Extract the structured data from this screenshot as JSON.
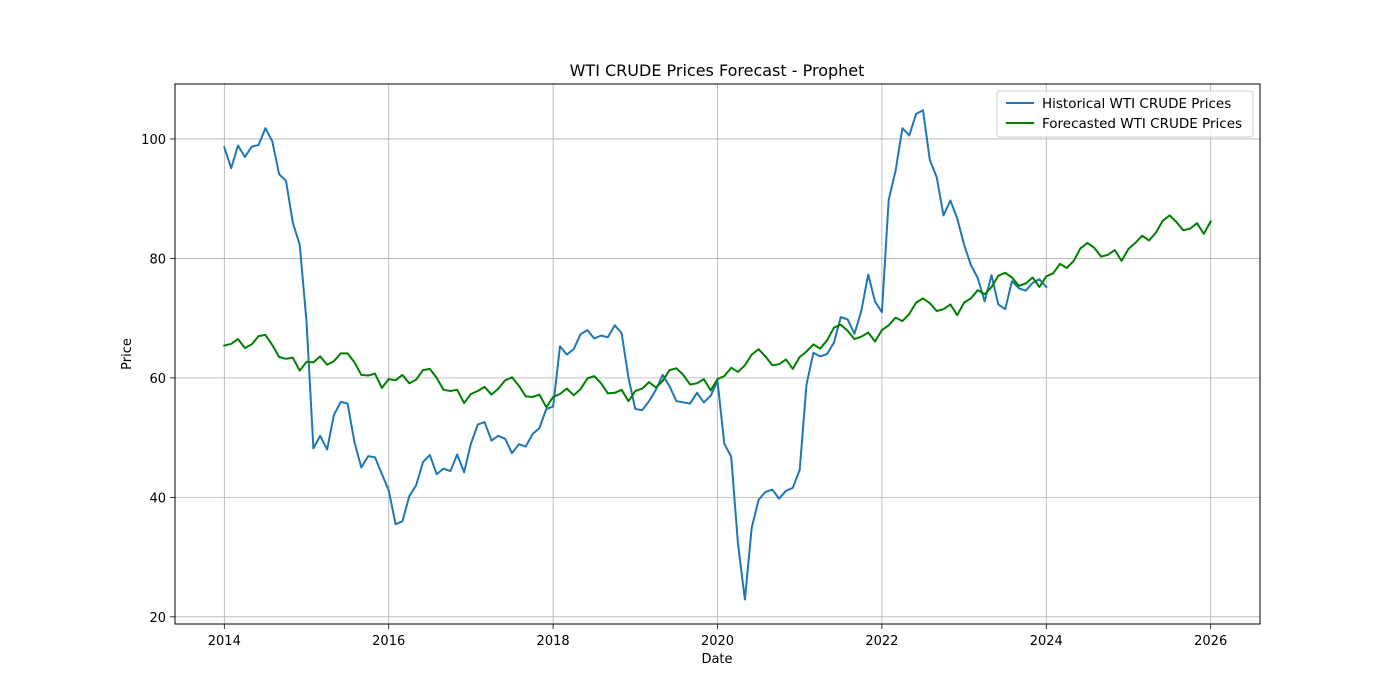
{
  "chart_data": {
    "type": "line",
    "title": "WTI CRUDE Prices Forecast - Prophet",
    "xlabel": "Date",
    "ylabel": "Price",
    "xlim": [
      2013.4,
      2026.6
    ],
    "ylim": [
      18.8,
      109.2
    ],
    "x_ticks": [
      2014,
      2016,
      2018,
      2020,
      2022,
      2024,
      2026
    ],
    "y_ticks": [
      20,
      40,
      60,
      80,
      100
    ],
    "grid": true,
    "legend_position": "top-right",
    "series": [
      {
        "name": "Historical WTI CRUDE Prices",
        "color": "#1f77b4",
        "start": "2014-01",
        "values": [
          98.6,
          95.1,
          98.9,
          97.0,
          98.7,
          99.0,
          101.8,
          99.6,
          94.1,
          93.0,
          86.0,
          82.3,
          69.5,
          48.2,
          50.3,
          48.0,
          53.8,
          56.0,
          55.7,
          49.2,
          45.0,
          46.9,
          46.7,
          43.9,
          41.2,
          35.5,
          36.0,
          40.2,
          42.0,
          45.9,
          47.1,
          43.9,
          44.8,
          44.4,
          47.2,
          44.2,
          49.0,
          52.2,
          52.6,
          49.5,
          50.3,
          49.8,
          47.4,
          48.9,
          48.5,
          50.6,
          51.6,
          54.8,
          55.2,
          65.3,
          63.9,
          64.8,
          67.3,
          68.0,
          66.6,
          67.1,
          66.8,
          68.8,
          67.5,
          60.0,
          54.8,
          54.6,
          56.1,
          58.0,
          60.5,
          58.6,
          56.1,
          55.9,
          55.7,
          57.5,
          55.9,
          57.0,
          59.5,
          49.0,
          46.8,
          32.2,
          22.9,
          34.9,
          39.6,
          40.9,
          41.3,
          39.8,
          41.1,
          41.6,
          44.6,
          58.9,
          64.2,
          63.6,
          64.0,
          65.9,
          70.2,
          69.8,
          67.4,
          71.2,
          77.3,
          72.8,
          71.0,
          89.8,
          94.7,
          101.8,
          100.6,
          104.2,
          104.8,
          96.5,
          93.6,
          87.2,
          89.7,
          86.7,
          82.3,
          78.9,
          76.7,
          72.8,
          77.2,
          72.3,
          71.5,
          76.2,
          75.0,
          74.6,
          75.9,
          76.5,
          75.2
        ]
      },
      {
        "name": "Forecasted WTI CRUDE Prices",
        "color": "#008000",
        "start": "2014-01",
        "values": [
          65.4,
          65.7,
          66.5,
          65.0,
          65.6,
          67.0,
          67.2,
          65.5,
          63.5,
          63.2,
          63.4,
          61.2,
          62.7,
          62.6,
          63.6,
          62.2,
          62.8,
          64.1,
          64.1,
          62.6,
          60.5,
          60.4,
          60.7,
          58.3,
          59.8,
          59.6,
          60.5,
          59.1,
          59.7,
          61.3,
          61.5,
          60.0,
          58.0,
          57.8,
          58.0,
          55.8,
          57.3,
          57.8,
          58.5,
          57.2,
          58.2,
          59.6,
          60.1,
          58.7,
          56.9,
          56.8,
          57.2,
          55.1,
          56.8,
          57.3,
          58.2,
          57.1,
          58.1,
          59.9,
          60.3,
          59.1,
          57.4,
          57.5,
          58.0,
          56.1,
          57.8,
          58.2,
          59.3,
          58.4,
          59.5,
          61.3,
          61.6,
          60.5,
          58.9,
          59.1,
          59.8,
          57.9,
          59.8,
          60.3,
          61.7,
          61.0,
          62.1,
          63.9,
          64.8,
          63.6,
          62.1,
          62.3,
          63.1,
          61.5,
          63.5,
          64.4,
          65.6,
          64.9,
          66.3,
          68.4,
          68.9,
          67.9,
          66.5,
          66.9,
          67.6,
          66.1,
          68.0,
          68.8,
          70.1,
          69.5,
          70.7,
          72.6,
          73.3,
          72.5,
          71.2,
          71.5,
          72.3,
          70.5,
          72.6,
          73.3,
          74.7,
          74.0,
          75.2,
          77.1,
          77.6,
          76.8,
          75.4,
          75.8,
          76.8,
          75.2,
          77.0,
          77.5,
          79.1,
          78.4,
          79.6,
          81.7,
          82.6,
          81.8,
          80.3,
          80.6,
          81.4,
          79.6,
          81.6,
          82.6,
          83.8,
          83.0,
          84.3,
          86.3,
          87.2,
          86.1,
          84.7,
          85.0,
          85.9,
          84.1,
          86.2
        ]
      }
    ]
  }
}
